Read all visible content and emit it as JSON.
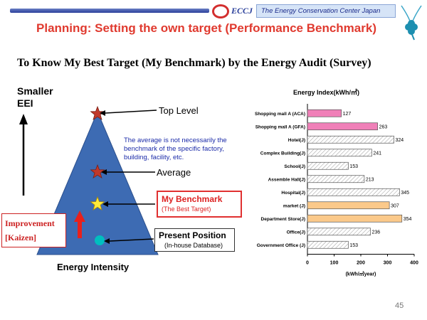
{
  "header": {
    "logo_text": "ECCJ",
    "org_name": "The Energy Conservation Center Japan"
  },
  "title": "Planning: Setting the own target (Performance Benchmark)",
  "subtitle": "To Know My Best Target (My  Benchmark)  by the Energy Audit (Survey)",
  "diagram": {
    "y_axis_label": "Smaller EEI",
    "improvement": "Improvement",
    "kaizen": "[Kaizen]",
    "top_level": "Top Level",
    "average": "Average",
    "note": "The average is not necessarily the benchmark of the specific factory, building, facility, etc.",
    "my_benchmark": "My Benchmark",
    "best_target": "(The Best Target)",
    "present_position": "Present Position",
    "inhouse_db": "(In-house Database)",
    "x_label": "Energy Intensity",
    "colors": {
      "pyramid": "#3d6bb3",
      "star_red": "#c0392b",
      "star_yellow": "#ffeb3b",
      "dot": "#00bfbf",
      "arrow_red": "#e8211c"
    }
  },
  "page_number": "45",
  "chart_data": {
    "type": "bar",
    "orientation": "horizontal",
    "title": "Energy  Index(kWh/㎡)",
    "xlabel": "(kWh/㎡year)",
    "xlim": [
      0,
      400
    ],
    "xticks": [
      "0",
      "100",
      "200",
      "300",
      "400"
    ],
    "categories": [
      "Shopping mall A (ACA)",
      "Shopping mall A (GFA)",
      "Hotel(J)",
      "Complex Building(J)",
      "School(J)",
      "Assemble Hall(J)",
      "Hospital(J)",
      "market (J)",
      "Department Store(J)",
      "Office(J)",
      "Government Office (J)"
    ],
    "values": [
      127,
      263,
      324,
      241,
      153,
      213,
      345,
      307,
      354,
      236,
      153
    ],
    "value_labels": [
      "127",
      "263",
      "324",
      "241",
      "153",
      "213",
      "345",
      "307",
      "354",
      "236",
      "153"
    ],
    "bar_styles": [
      "pink",
      "pink",
      "hatch",
      "hatch",
      "hatch",
      "hatch",
      "hatch",
      "orange",
      "orange",
      "hatch",
      "hatch"
    ],
    "colors": {
      "pink": "#f080b8",
      "orange": "#fbc98a",
      "hatch": "#ffffff"
    }
  }
}
